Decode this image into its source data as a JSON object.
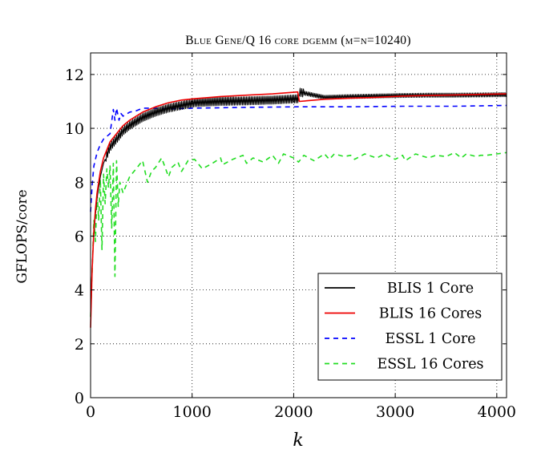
{
  "chart_data": {
    "type": "line",
    "title": "Blue Gene/Q 16 core dgemm (m=n=10240)",
    "xlabel": "k",
    "ylabel": "GFLOPS/core",
    "xlim": [
      0,
      4096
    ],
    "ylim": [
      0,
      12.8
    ],
    "xticks": [
      0,
      1000,
      2000,
      3000,
      4000
    ],
    "yticks": [
      0,
      2,
      4,
      6,
      8,
      10,
      12
    ],
    "grid": "dotted",
    "legend_position": "bottom-right",
    "series": [
      {
        "name": "BLIS 1 Core",
        "color": "#000000",
        "dash": "solid",
        "oscillation": 0.15,
        "x": [
          0,
          16,
          32,
          48,
          64,
          96,
          128,
          192,
          256,
          320,
          384,
          448,
          512,
          640,
          768,
          896,
          1024,
          1280,
          1536,
          1792,
          2048,
          2049,
          2304,
          2560,
          2816,
          3072,
          3328,
          3584,
          3840,
          4096
        ],
        "y": [
          3.2,
          4.9,
          6.0,
          6.8,
          7.4,
          8.2,
          8.7,
          9.3,
          9.6,
          9.9,
          10.1,
          10.25,
          10.4,
          10.6,
          10.75,
          10.85,
          10.95,
          11.0,
          11.02,
          11.05,
          11.1,
          11.35,
          11.15,
          11.18,
          11.2,
          11.22,
          11.23,
          11.23,
          11.24,
          11.25
        ]
      },
      {
        "name": "BLIS 16 Cores",
        "color": "#ee0000",
        "dash": "solid",
        "oscillation": 0,
        "x": [
          0,
          16,
          32,
          48,
          64,
          96,
          128,
          192,
          256,
          320,
          384,
          448,
          512,
          640,
          768,
          896,
          1024,
          1280,
          1536,
          1792,
          2040,
          2056,
          2304,
          2560,
          2816,
          3072,
          3328,
          3584,
          3840,
          4096
        ],
        "y": [
          2.6,
          4.8,
          6.2,
          7.0,
          7.6,
          8.4,
          8.9,
          9.5,
          9.8,
          10.1,
          10.3,
          10.45,
          10.6,
          10.8,
          10.95,
          11.05,
          11.1,
          11.18,
          11.23,
          11.28,
          11.35,
          11.0,
          11.08,
          11.12,
          11.15,
          11.2,
          11.22,
          11.24,
          11.26,
          11.28
        ]
      },
      {
        "name": "ESSL 1 Core",
        "color": "#0000ff",
        "dash": "6,5",
        "oscillation": 0,
        "x": [
          0,
          16,
          32,
          64,
          96,
          128,
          192,
          224,
          240,
          256,
          280,
          300,
          320,
          384,
          448,
          512,
          640,
          768,
          1024,
          1536,
          2048,
          2560,
          3072,
          3584,
          4096
        ],
        "y": [
          6.9,
          7.9,
          8.6,
          9.1,
          9.4,
          9.6,
          9.8,
          10.7,
          10.3,
          10.75,
          10.3,
          10.55,
          10.45,
          10.6,
          10.65,
          10.75,
          10.75,
          10.72,
          10.75,
          10.78,
          10.8,
          10.8,
          10.82,
          10.82,
          10.85
        ]
      },
      {
        "name": "ESSL 16 Cores",
        "color": "#22dd22",
        "dash": "6,5",
        "oscillation": 0,
        "x": [
          0,
          16,
          32,
          48,
          64,
          80,
          96,
          112,
          128,
          144,
          160,
          176,
          192,
          208,
          224,
          240,
          256,
          272,
          288,
          320,
          384,
          448,
          512,
          560,
          600,
          640,
          700,
          768,
          800,
          860,
          896,
          960,
          1024,
          1100,
          1200,
          1280,
          1300,
          1400,
          1500,
          1536,
          1600,
          1700,
          1792,
          1850,
          1900,
          2000,
          2048,
          2100,
          2200,
          2304,
          2350,
          2400,
          2500,
          2560,
          2600,
          2700,
          2816,
          2900,
          3000,
          3072,
          3100,
          3200,
          3328,
          3400,
          3500,
          3584,
          3650,
          3700,
          3800,
          3840,
          3900,
          4000,
          4096
        ],
        "y": [
          3.0,
          4.7,
          6.6,
          5.8,
          7.6,
          6.6,
          8.1,
          5.5,
          8.3,
          7.2,
          8.5,
          7.8,
          8.6,
          6.3,
          8.7,
          4.5,
          8.8,
          7.1,
          8.0,
          7.6,
          8.2,
          8.5,
          8.8,
          8.0,
          8.4,
          8.55,
          8.9,
          8.2,
          8.55,
          8.75,
          8.4,
          8.8,
          8.85,
          8.5,
          8.7,
          8.9,
          8.65,
          8.85,
          9.0,
          8.7,
          8.9,
          8.75,
          9.0,
          8.7,
          9.05,
          8.9,
          8.75,
          9.0,
          8.8,
          9.05,
          8.85,
          9.05,
          8.95,
          9.0,
          8.85,
          9.05,
          8.9,
          9.05,
          8.85,
          9.0,
          8.8,
          9.05,
          8.9,
          9.0,
          8.95,
          9.1,
          8.9,
          9.05,
          8.95,
          9.0,
          9.0,
          9.05,
          9.1
        ]
      }
    ]
  }
}
